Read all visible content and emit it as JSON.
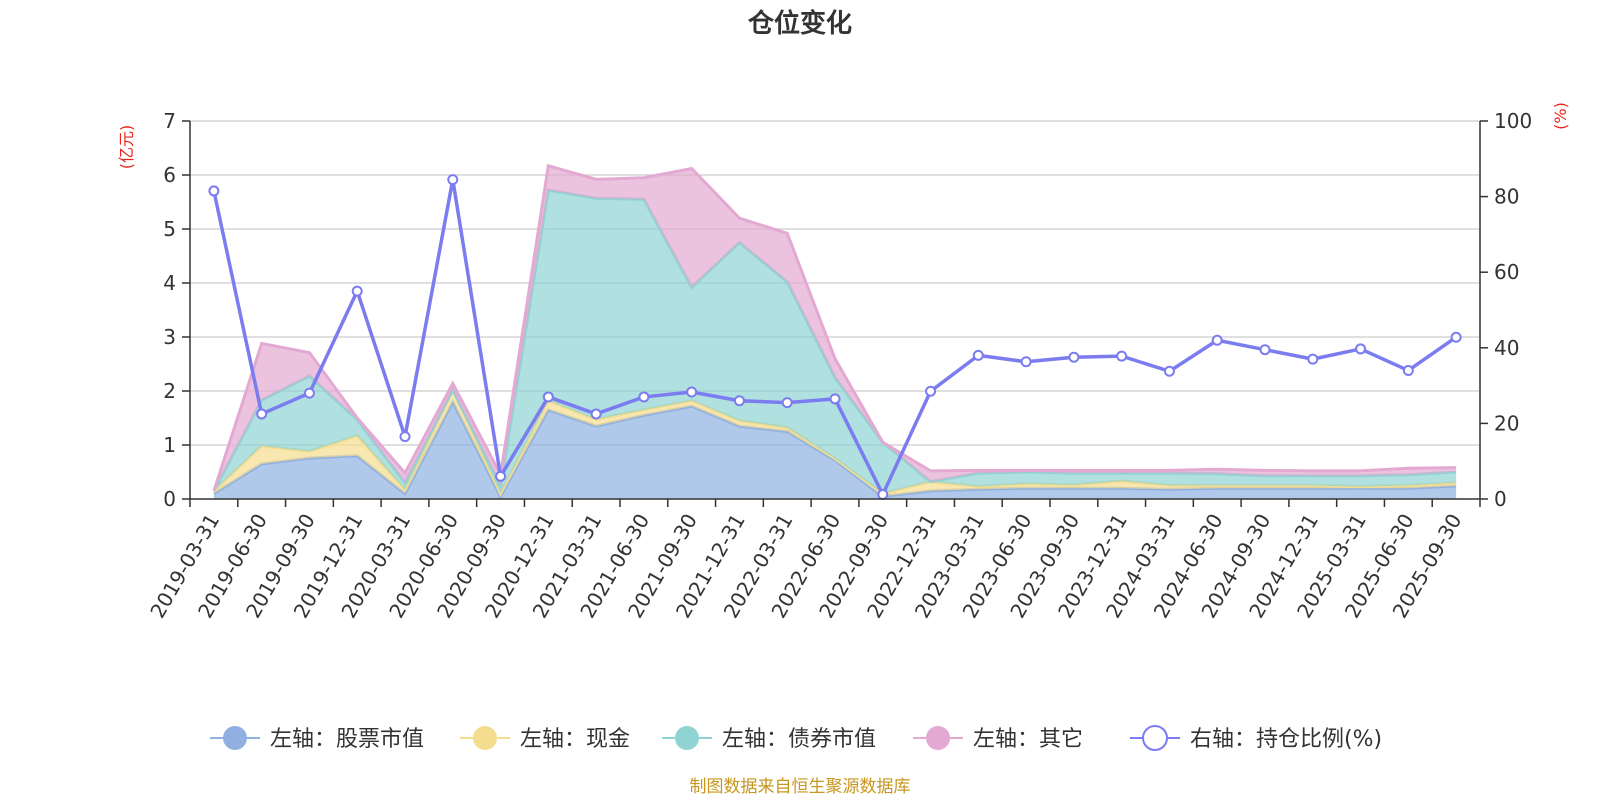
{
  "chart_data": {
    "type": "area",
    "title": "仓位变化",
    "left_unit": "(亿元)",
    "right_unit": "(%)",
    "categories": [
      "2019-03-31",
      "2019-06-30",
      "2019-09-30",
      "2019-12-31",
      "2020-03-31",
      "2020-06-30",
      "2020-09-30",
      "2020-12-31",
      "2021-03-31",
      "2021-06-30",
      "2021-09-30",
      "2021-12-31",
      "2022-03-31",
      "2022-06-30",
      "2022-09-30",
      "2022-12-31",
      "2023-03-31",
      "2023-06-30",
      "2023-09-30",
      "2023-12-31",
      "2024-03-31",
      "2024-06-30",
      "2024-09-30",
      "2024-12-31",
      "2025-03-31",
      "2025-06-30",
      "2025-09-30"
    ],
    "left_ylim": [
      0,
      7
    ],
    "left_ticks": [
      "0",
      "1",
      "2",
      "3",
      "4",
      "5",
      "6",
      "7"
    ],
    "right_ylim": [
      0,
      100
    ],
    "right_ticks": [
      "0",
      "20",
      "40",
      "60",
      "80",
      "100"
    ],
    "grid": true,
    "legend_position": "bottom",
    "series": [
      {
        "name": "左轴：股票市值",
        "axis": "left",
        "kind": "stacked-area",
        "color": "#8fb0e0",
        "values": [
          0.1,
          0.65,
          0.76,
          0.8,
          0.1,
          1.8,
          0.05,
          1.65,
          1.35,
          1.55,
          1.72,
          1.35,
          1.25,
          0.72,
          0.05,
          0.15,
          0.18,
          0.2,
          0.2,
          0.2,
          0.18,
          0.2,
          0.2,
          0.2,
          0.2,
          0.2,
          0.24
        ]
      },
      {
        "name": "左轴：现金",
        "axis": "left",
        "kind": "stacked-area",
        "color": "#f5dd8f",
        "values": [
          0.05,
          0.33,
          0.12,
          0.37,
          0.07,
          0.22,
          0.05,
          0.17,
          0.12,
          0.1,
          0.1,
          0.1,
          0.07,
          0.03,
          0.05,
          0.17,
          0.05,
          0.08,
          0.06,
          0.13,
          0.07,
          0.05,
          0.05,
          0.05,
          0.03,
          0.05,
          0.06
        ]
      },
      {
        "name": "左轴：债券市值",
        "axis": "left",
        "kind": "stacked-area",
        "color": "#8fd3d3",
        "values": [
          0.0,
          0.85,
          1.4,
          0.3,
          0.13,
          0.0,
          0.15,
          3.9,
          4.1,
          3.9,
          2.1,
          3.3,
          2.7,
          1.5,
          0.95,
          0.0,
          0.25,
          0.22,
          0.22,
          0.15,
          0.23,
          0.22,
          0.18,
          0.18,
          0.2,
          0.2,
          0.2
        ]
      },
      {
        "name": "左轴：其它",
        "axis": "left",
        "kind": "stacked-area",
        "color": "#e3a9d2",
        "values": [
          0.0,
          1.05,
          0.43,
          0.03,
          0.18,
          0.12,
          0.2,
          0.45,
          0.35,
          0.4,
          2.2,
          0.45,
          0.9,
          0.35,
          0.0,
          0.2,
          0.05,
          0.03,
          0.05,
          0.05,
          0.05,
          0.08,
          0.1,
          0.09,
          0.09,
          0.12,
          0.08
        ]
      },
      {
        "name": "右轴：持仓比例(%)",
        "axis": "right",
        "kind": "line",
        "color": "#7b7cf0",
        "values": [
          81.5,
          22.5,
          28.0,
          55.0,
          16.5,
          84.5,
          6.0,
          27.0,
          22.5,
          27.0,
          28.3,
          26.0,
          25.5,
          26.5,
          1.2,
          28.5,
          38.0,
          36.3,
          37.5,
          37.8,
          33.8,
          42.0,
          39.5,
          37.0,
          39.7,
          34.0,
          42.8
        ]
      }
    ]
  },
  "source_text": "制图数据来自恒生聚源数据库"
}
